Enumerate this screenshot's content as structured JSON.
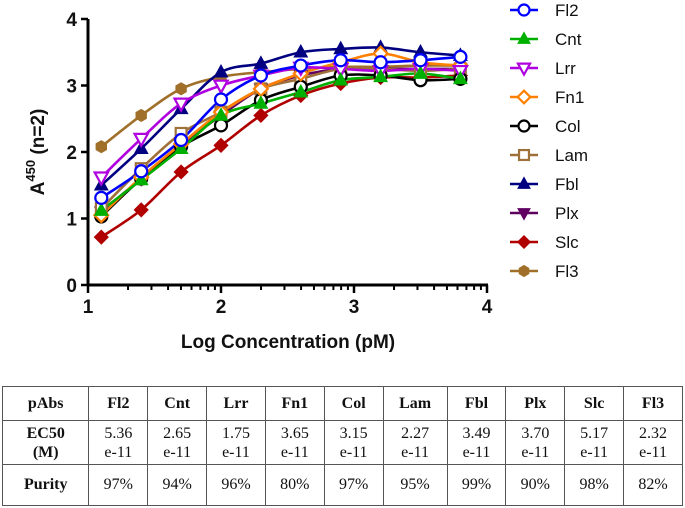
{
  "chart_data": {
    "type": "line",
    "title": "",
    "xlabel": "Log Concentration (pM)",
    "ylabel": "A",
    "ylabel_superscript": "450",
    "ylabel_suffix": " (n=2)",
    "xlim": [
      1,
      4
    ],
    "ylim": [
      0,
      4
    ],
    "xticks": [
      "1",
      "2",
      "3",
      "4"
    ],
    "yticks": [
      "0",
      "1",
      "2",
      "3",
      "4"
    ],
    "grid": false,
    "legend_position": "right",
    "x": [
      1.1,
      1.4,
      1.7,
      2.0,
      2.3,
      2.6,
      2.9,
      3.2,
      3.5,
      3.8
    ],
    "series": [
      {
        "name": "Fl2",
        "color": "#0000ff",
        "marker": "circle-open",
        "values": [
          1.31,
          1.71,
          2.18,
          2.79,
          3.15,
          3.3,
          3.38,
          3.35,
          3.38,
          3.43
        ]
      },
      {
        "name": "Cnt",
        "color": "#00b000",
        "marker": "triangle-up-filled",
        "values": [
          1.12,
          1.58,
          2.05,
          2.55,
          2.73,
          2.9,
          3.08,
          3.13,
          3.18,
          3.1
        ]
      },
      {
        "name": "Lrr",
        "color": "#b000e0",
        "marker": "triangle-down-open",
        "values": [
          1.62,
          2.2,
          2.73,
          3.0,
          3.15,
          3.27,
          3.25,
          3.22,
          3.25,
          3.22
        ]
      },
      {
        "name": "Fn1",
        "color": "#ff8000",
        "marker": "diamond-open",
        "values": [
          1.05,
          1.62,
          2.12,
          2.6,
          2.95,
          3.18,
          3.35,
          3.48,
          3.35,
          3.3
        ]
      },
      {
        "name": "Col",
        "color": "#000000",
        "marker": "circle-open",
        "values": [
          1.03,
          1.6,
          2.08,
          2.4,
          2.78,
          2.98,
          3.15,
          3.15,
          3.08,
          3.1
        ]
      },
      {
        "name": "Lam",
        "color": "#a0703a",
        "marker": "square-open",
        "values": [
          1.15,
          1.75,
          2.28,
          2.6,
          2.95,
          3.1,
          3.25,
          3.25,
          3.22,
          3.25
        ]
      },
      {
        "name": "Fbl",
        "color": "#000080",
        "marker": "triangle-up-filled",
        "values": [
          1.5,
          2.05,
          2.65,
          3.2,
          3.33,
          3.5,
          3.55,
          3.57,
          3.5,
          3.45
        ]
      },
      {
        "name": "Plx",
        "color": "#600060",
        "marker": "triangle-down-filled",
        "values": [
          1.1,
          1.6,
          2.1,
          2.55,
          2.95,
          3.15,
          3.25,
          3.25,
          3.25,
          3.25
        ]
      },
      {
        "name": "Slc",
        "color": "#b00000",
        "marker": "diamond-filled",
        "values": [
          0.72,
          1.13,
          1.7,
          2.1,
          2.55,
          2.85,
          3.03,
          3.12,
          3.12,
          3.15
        ]
      },
      {
        "name": "Fl3",
        "color": "#a0702a",
        "marker": "hexagon-filled",
        "values": [
          2.08,
          2.55,
          2.95,
          3.13,
          3.2,
          3.25,
          3.28,
          3.28,
          3.3,
          3.3
        ]
      }
    ]
  },
  "table": {
    "header": [
      "pAbs",
      "Fl2",
      "Cnt",
      "Lrr",
      "Fn1",
      "Col",
      "Lam",
      "Fbl",
      "Plx",
      "Slc",
      "Fl3"
    ],
    "ec50_label_line1": "EC50",
    "ec50_label_line2": "(M)",
    "ec50_mantissa": [
      "5.36",
      "2.65",
      "1.75",
      "3.65",
      "3.15",
      "2.27",
      "3.49",
      "3.70",
      "5.17",
      "2.32"
    ],
    "ec50_exponent": [
      "e-11",
      "e-11",
      "e-11",
      "e-11",
      "e-11",
      "e-11",
      "e-11",
      "e-11",
      "e-11",
      "e-11"
    ],
    "purity_label": "Purity",
    "purity": [
      "97%",
      "94%",
      "96%",
      "80%",
      "97%",
      "95%",
      "99%",
      "90%",
      "98%",
      "82%"
    ]
  }
}
